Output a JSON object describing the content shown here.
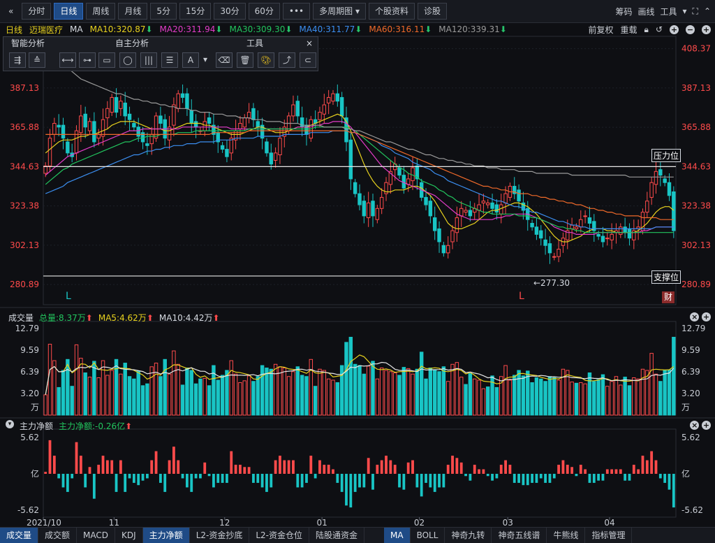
{
  "topbar": {
    "tabs": [
      "分时",
      "日线",
      "周线",
      "月线",
      "5分",
      "15分",
      "30分",
      "60分",
      "•••",
      "多周期图",
      "个股资料",
      "诊股"
    ],
    "active_tab": "日线",
    "dropdown_tab": "多周期图",
    "right_items": [
      "筹码",
      "画线",
      "工具"
    ]
  },
  "indicator_bar": {
    "period": "日线",
    "stock_name": "迈瑞医疗",
    "ma_label": "MA",
    "ma10": "MA10:320.87",
    "ma20": "MA20:311.94",
    "ma30": "MA30:309.30",
    "ma40": "MA40:311.77",
    "ma60": "MA60:316.11",
    "ma120": "MA120:339.31",
    "right": [
      "前复权",
      "重载"
    ]
  },
  "tool_panel": {
    "smart": "智能分析",
    "manual": "自主分析",
    "tools": "工具",
    "close": "×"
  },
  "colors": {
    "up": "#ff4b4b",
    "down": "#19c5c5",
    "ma10": "#e8d21e",
    "ma20": "#e33cc8",
    "ma30": "#22c55e",
    "ma40": "#3b8ef0",
    "ma60": "#f06a2a",
    "ma120": "#9a9a9a"
  },
  "price_chart": {
    "y_ticks": [
      "408.37",
      "387.13",
      "365.88",
      "344.63",
      "323.38",
      "302.13",
      "280.89"
    ],
    "resistance_label": "压力位",
    "support_label": "支撑位",
    "low_label": "←277.30",
    "marker_l1": "L",
    "marker_l2": "L",
    "finance_badge": "财"
  },
  "volume_panel": {
    "title": "成交量",
    "total": "总量:8.37万",
    "ma5": "MA5:4.62万",
    "ma10": "MA10:4.42万",
    "y_ticks": [
      "12.79",
      "9.59",
      "6.39",
      "3.20",
      "万"
    ]
  },
  "flow_panel": {
    "title": "主力净额",
    "value": "主力净额:-0.26亿",
    "y_ticks": [
      "5.62",
      "亿",
      "-5.62"
    ]
  },
  "x_axis": [
    "2021/10",
    "11",
    "12",
    "01",
    "02",
    "03",
    "04"
  ],
  "bottom_tabs_left": [
    "成交量",
    "成交额",
    "MACD",
    "KDJ",
    "主力净额",
    "L2-资金抄底",
    "L2-资金仓位",
    "陆股通资金"
  ],
  "bottom_tabs_right": [
    "MA",
    "BOLL",
    "神奇九转",
    "神奇五线谱",
    "牛熊线",
    "指标管理"
  ],
  "chart_data": {
    "type": "candlestick",
    "title": "迈瑞医疗 日线",
    "x_labels": [
      "2021/10",
      "11",
      "12",
      "01",
      "02",
      "03",
      "04"
    ],
    "ylim": [
      270,
      412
    ],
    "resistance": 344.63,
    "support": 285.5,
    "low": 277.3,
    "close": [
      345,
      360,
      368,
      366,
      360,
      352,
      350,
      364,
      372,
      366,
      369,
      358,
      362,
      370,
      376,
      382,
      374,
      380,
      372,
      370,
      366,
      361,
      358,
      356,
      362,
      372,
      368,
      360,
      366,
      378,
      384,
      382,
      376,
      368,
      366,
      364,
      369,
      368,
      362,
      358,
      354,
      350,
      360,
      364,
      368,
      371,
      374,
      370,
      366,
      360,
      352,
      346,
      352,
      360,
      366,
      372,
      378,
      372,
      366,
      362,
      370,
      368,
      374,
      378,
      382,
      384,
      380,
      372,
      358,
      338,
      330,
      324,
      318,
      325,
      318,
      322,
      328,
      336,
      342,
      346,
      340,
      333,
      338,
      344,
      338,
      328,
      324,
      318,
      310,
      304,
      298,
      302,
      310,
      317,
      322,
      321,
      318,
      322,
      324,
      326,
      325,
      322,
      320,
      324,
      330,
      334,
      330,
      326,
      321,
      316,
      312,
      308,
      306,
      302,
      298,
      296,
      300,
      306,
      310,
      313,
      312,
      316,
      318,
      314,
      310,
      307,
      304,
      306,
      308,
      310,
      312,
      309,
      306,
      310,
      312,
      320,
      326,
      336,
      342,
      340,
      336,
      329,
      310
    ],
    "ma10": [
      352,
      354,
      356,
      358,
      359,
      359,
      359,
      360,
      361,
      361,
      362,
      362,
      363,
      364,
      365,
      367,
      368,
      369,
      369,
      369,
      369,
      368,
      367,
      366,
      365,
      365,
      365,
      364,
      364,
      365,
      366,
      367,
      368,
      368,
      368,
      368,
      367,
      367,
      366,
      365,
      364,
      363,
      362,
      362,
      362,
      363,
      364,
      365,
      366,
      366,
      365,
      364,
      363,
      363,
      363,
      364,
      365,
      366,
      366,
      366,
      367,
      368,
      369,
      370,
      371,
      372,
      373,
      372,
      369,
      364,
      358,
      352,
      346,
      341,
      337,
      334,
      332,
      331,
      331,
      332,
      332,
      332,
      333,
      334,
      334,
      333,
      331,
      329,
      326,
      322,
      318,
      314,
      312,
      311,
      311,
      312,
      313,
      314,
      316,
      318,
      320,
      321,
      321,
      322,
      323,
      324,
      325,
      325,
      324,
      323,
      321,
      319,
      316,
      313,
      310,
      307,
      305,
      304,
      304,
      305,
      306,
      307,
      309,
      310,
      311,
      311,
      311,
      310,
      310,
      309,
      309,
      309,
      309,
      309,
      310,
      312,
      314,
      317,
      320,
      322,
      323,
      323,
      321
    ],
    "ma20": [
      340,
      342,
      344,
      346,
      348,
      350,
      351,
      352,
      353,
      354,
      355,
      356,
      357,
      358,
      359,
      360,
      361,
      362,
      363,
      364,
      364,
      364,
      365,
      365,
      365,
      365,
      365,
      365,
      365,
      365,
      365,
      366,
      366,
      366,
      366,
      366,
      366,
      366,
      366,
      366,
      366,
      366,
      365,
      365,
      365,
      365,
      365,
      365,
      365,
      365,
      365,
      365,
      365,
      365,
      365,
      365,
      365,
      366,
      366,
      366,
      366,
      367,
      367,
      368,
      368,
      369,
      369,
      369,
      368,
      366,
      363,
      360,
      357,
      354,
      351,
      348,
      345,
      343,
      341,
      339,
      337,
      336,
      335,
      334,
      333,
      332,
      331,
      330,
      329,
      327,
      325,
      323,
      321,
      319,
      318,
      317,
      316,
      316,
      316,
      316,
      316,
      316,
      317,
      317,
      318,
      318,
      319,
      319,
      319,
      319,
      318,
      317,
      316,
      315,
      314,
      312,
      311,
      310,
      309,
      309,
      308,
      308,
      308,
      308,
      308,
      309,
      309,
      309,
      309,
      309,
      309,
      309,
      309,
      309,
      309,
      310,
      310,
      311,
      312,
      312,
      312,
      312,
      312
    ],
    "ma30": [
      335,
      337,
      339,
      341,
      343,
      344,
      346,
      347,
      348,
      349,
      350,
      351,
      352,
      353,
      354,
      355,
      356,
      357,
      358,
      358,
      359,
      360,
      360,
      361,
      361,
      361,
      362,
      362,
      362,
      362,
      363,
      363,
      363,
      363,
      364,
      364,
      364,
      364,
      364,
      364,
      364,
      364,
      364,
      364,
      364,
      364,
      365,
      365,
      365,
      365,
      365,
      365,
      365,
      365,
      365,
      365,
      365,
      365,
      365,
      365,
      365,
      366,
      366,
      366,
      366,
      366,
      366,
      366,
      366,
      365,
      364,
      362,
      360,
      358,
      356,
      354,
      352,
      350,
      348,
      346,
      344,
      343,
      341,
      340,
      339,
      337,
      336,
      335,
      334,
      332,
      331,
      329,
      328,
      326,
      325,
      324,
      323,
      322,
      321,
      320,
      320,
      319,
      319,
      319,
      319,
      319,
      319,
      318,
      318,
      318,
      317,
      317,
      316,
      315,
      314,
      313,
      312,
      312,
      311,
      311,
      310,
      310,
      309,
      309,
      309,
      309,
      309,
      309,
      309,
      309,
      309,
      309,
      309,
      309,
      309,
      309,
      309,
      309,
      309,
      309,
      309,
      309,
      309
    ],
    "ma40": [
      330,
      331,
      332,
      333,
      334,
      336,
      337,
      338,
      339,
      340,
      341,
      342,
      343,
      344,
      345,
      346,
      347,
      348,
      349,
      350,
      351,
      351,
      352,
      353,
      353,
      354,
      354,
      355,
      355,
      356,
      356,
      356,
      357,
      357,
      357,
      358,
      358,
      358,
      358,
      359,
      359,
      359,
      359,
      360,
      360,
      360,
      360,
      360,
      361,
      361,
      361,
      361,
      361,
      361,
      362,
      362,
      362,
      362,
      362,
      362,
      363,
      363,
      363,
      363,
      363,
      364,
      364,
      364,
      364,
      363,
      363,
      362,
      361,
      360,
      359,
      358,
      356,
      355,
      354,
      352,
      351,
      350,
      349,
      347,
      346,
      345,
      344,
      343,
      341,
      340,
      339,
      337,
      336,
      335,
      334,
      333,
      332,
      331,
      330,
      329,
      328,
      327,
      326,
      326,
      325,
      324,
      323,
      323,
      322,
      321,
      320,
      320,
      319,
      318,
      317,
      316,
      315,
      315,
      314,
      313,
      313,
      312,
      312,
      311,
      311,
      311,
      311,
      311,
      311,
      311,
      311,
      311,
      311,
      311,
      311,
      311,
      311,
      311,
      312,
      312,
      312,
      312,
      312
    ],
    "ma60": [
      362,
      362,
      362,
      362,
      362,
      362,
      362,
      362,
      362,
      362,
      362,
      362,
      362,
      362,
      362,
      362,
      362,
      362,
      362,
      362,
      362,
      362,
      362,
      362,
      362,
      362,
      362,
      362,
      362,
      362,
      362,
      362,
      362,
      362,
      362,
      362,
      362,
      362,
      363,
      363,
      363,
      363,
      363,
      363,
      363,
      363,
      364,
      364,
      364,
      364,
      364,
      364,
      364,
      364,
      364,
      364,
      364,
      364,
      364,
      364,
      364,
      364,
      364,
      364,
      364,
      364,
      364,
      364,
      364,
      363,
      363,
      362,
      361,
      360,
      359,
      358,
      357,
      356,
      355,
      354,
      353,
      352,
      351,
      350,
      349,
      348,
      347,
      346,
      345,
      344,
      343,
      342,
      341,
      340,
      339,
      338,
      337,
      336,
      335,
      334,
      334,
      333,
      333,
      332,
      332,
      331,
      331,
      330,
      330,
      330,
      329,
      329,
      328,
      328,
      327,
      327,
      326,
      326,
      325,
      325,
      324,
      324,
      323,
      322,
      322,
      321,
      321,
      320,
      320,
      319,
      319,
      318,
      318,
      318,
      318,
      317,
      317,
      317,
      317,
      316,
      316,
      316,
      316
    ],
    "ma120": [
      408,
      406,
      404,
      402,
      400,
      398,
      396,
      394,
      392,
      391,
      390,
      389,
      388,
      387,
      386,
      385,
      384,
      384,
      383,
      382,
      381,
      381,
      380,
      380,
      379,
      379,
      378,
      378,
      377,
      377,
      376,
      376,
      376,
      375,
      375,
      374,
      374,
      374,
      373,
      373,
      373,
      372,
      372,
      372,
      371,
      371,
      371,
      370,
      370,
      370,
      369,
      369,
      369,
      369,
      368,
      368,
      368,
      368,
      367,
      367,
      367,
      367,
      367,
      366,
      366,
      366,
      366,
      366,
      365,
      365,
      364,
      364,
      363,
      362,
      361,
      360,
      359,
      358,
      358,
      357,
      356,
      355,
      354,
      354,
      353,
      352,
      351,
      351,
      350,
      349,
      349,
      348,
      348,
      347,
      347,
      346,
      346,
      345,
      345,
      345,
      344,
      344,
      344,
      343,
      343,
      343,
      343,
      342,
      342,
      342,
      342,
      341,
      341,
      341,
      341,
      341,
      341,
      341,
      341,
      340,
      340,
      340,
      340,
      340,
      340,
      340,
      340,
      340,
      340,
      340,
      340,
      340,
      339,
      339,
      339,
      339,
      339,
      339,
      339,
      339,
      339,
      339,
      339
    ],
    "volume_ylim": [
      0,
      12.79
    ],
    "flow_ylim": [
      -5.62,
      5.62
    ]
  }
}
